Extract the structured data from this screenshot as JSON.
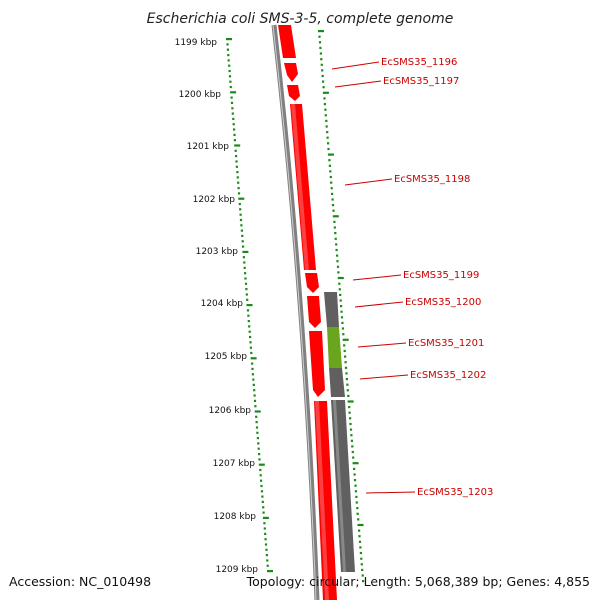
{
  "title": "Escherichia coli SMS-3-5, complete genome",
  "accession": "Accession: NC_010498",
  "topology": "Topology: circular; Length: 5,068,389 bp; Genes: 4,855",
  "colors": {
    "forward_gene": "#ff0000",
    "reverse_gene": "#606060",
    "highlight_gene": "#6aa51e",
    "backbone": "#808080",
    "ticks": "#1a8a1a",
    "label_text": "#cc0000"
  },
  "ruler": {
    "unit": "kbp",
    "marks": [
      {
        "kbp": 1199,
        "label": "1199 kbp"
      },
      {
        "kbp": 1200,
        "label": "1200 kbp"
      },
      {
        "kbp": 1201,
        "label": "1201 kbp"
      },
      {
        "kbp": 1202,
        "label": "1202 kbp"
      },
      {
        "kbp": 1203,
        "label": "1203 kbp"
      },
      {
        "kbp": 1204,
        "label": "1204 kbp"
      },
      {
        "kbp": 1205,
        "label": "1205 kbp"
      },
      {
        "kbp": 1206,
        "label": "1206 kbp"
      },
      {
        "kbp": 1207,
        "label": "1207 kbp"
      },
      {
        "kbp": 1208,
        "label": "1208 kbp"
      },
      {
        "kbp": 1209,
        "label": "1209 kbp"
      }
    ]
  },
  "genes": [
    {
      "label": "EcSMS35_1196"
    },
    {
      "label": "EcSMS35_1197"
    },
    {
      "label": "EcSMS35_1198"
    },
    {
      "label": "EcSMS35_1199"
    },
    {
      "label": "EcSMS35_1200"
    },
    {
      "label": "EcSMS35_1201"
    },
    {
      "label": "EcSMS35_1202"
    },
    {
      "label": "EcSMS35_1203"
    }
  ]
}
